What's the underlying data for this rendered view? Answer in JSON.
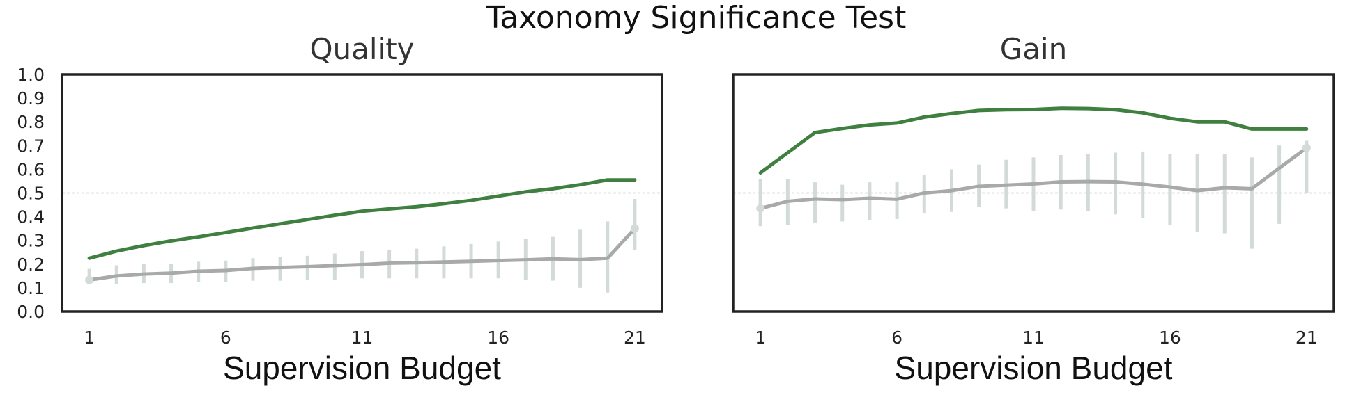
{
  "figure_title": "Taxonomy Significance Test",
  "colors": {
    "treatment": "#3f8040",
    "baseline": "#a8aaa9",
    "errorbar": "#d3dbd8",
    "reference": "#8a8a8a",
    "frame": "#222222"
  },
  "chart_data": [
    {
      "type": "line",
      "title": "Quality",
      "xlabel": "Supervision Budget",
      "ylabel": "",
      "xlim": [
        0,
        22
      ],
      "ylim": [
        0,
        1.0
      ],
      "x_ticks": [
        1,
        6,
        11,
        16,
        21
      ],
      "y_ticks": [
        0.0,
        0.1,
        0.2,
        0.3,
        0.4,
        0.5,
        0.6,
        0.7,
        0.8,
        0.9,
        1.0
      ],
      "y_tick_labels": [
        "0.0",
        "0.1",
        "0.2",
        "0.3",
        "0.4",
        "0.5",
        "0.6",
        "0.7",
        "0.8",
        "0.9",
        "1.0"
      ],
      "grid": false,
      "reference_line": 0.5,
      "x": [
        1,
        2,
        3,
        4,
        5,
        6,
        7,
        8,
        9,
        10,
        11,
        12,
        13,
        14,
        15,
        16,
        17,
        18,
        19,
        20,
        21
      ],
      "series": [
        {
          "values": [
            0.225,
            0.255,
            0.278,
            0.298,
            0.315,
            0.333,
            0.352,
            0.37,
            0.388,
            0.406,
            0.423,
            0.433,
            0.442,
            0.455,
            0.469,
            0.487,
            0.505,
            0.518,
            0.535,
            0.555,
            0.555
          ]
        },
        {
          "values": [
            0.133,
            0.15,
            0.158,
            0.162,
            0.17,
            0.173,
            0.182,
            0.186,
            0.189,
            0.194,
            0.198,
            0.204,
            0.206,
            0.209,
            0.212,
            0.215,
            0.218,
            0.222,
            0.219,
            0.225,
            0.35
          ],
          "error_low": [
            0.115,
            0.115,
            0.12,
            0.12,
            0.125,
            0.125,
            0.13,
            0.13,
            0.135,
            0.135,
            0.14,
            0.14,
            0.14,
            0.14,
            0.14,
            0.14,
            0.135,
            0.13,
            0.1,
            0.08,
            0.26
          ],
          "error_high": [
            0.18,
            0.195,
            0.2,
            0.2,
            0.21,
            0.215,
            0.225,
            0.23,
            0.235,
            0.245,
            0.255,
            0.26,
            0.265,
            0.275,
            0.285,
            0.295,
            0.305,
            0.315,
            0.345,
            0.38,
            0.475
          ]
        }
      ]
    },
    {
      "type": "line",
      "title": "Gain",
      "xlabel": "Supervision Budget",
      "ylabel": "",
      "xlim": [
        0,
        22
      ],
      "ylim": [
        0,
        1.0
      ],
      "x_ticks": [
        1,
        6,
        11,
        16,
        21
      ],
      "grid": false,
      "reference_line": 0.5,
      "x": [
        1,
        2,
        3,
        4,
        5,
        6,
        7,
        8,
        9,
        10,
        11,
        12,
        13,
        14,
        15,
        16,
        17,
        18,
        19,
        20,
        21
      ],
      "series": [
        {
          "values": [
            0.585,
            0.67,
            0.755,
            0.772,
            0.787,
            0.795,
            0.82,
            0.835,
            0.848,
            0.851,
            0.852,
            0.857,
            0.856,
            0.851,
            0.838,
            0.815,
            0.8,
            0.8,
            0.77,
            0.77,
            0.77
          ]
        },
        {
          "values": [
            0.435,
            0.465,
            0.475,
            0.472,
            0.478,
            0.474,
            0.5,
            0.51,
            0.528,
            0.533,
            0.538,
            0.547,
            0.548,
            0.547,
            0.537,
            0.525,
            0.51,
            0.522,
            0.518,
            0.605,
            0.69
          ],
          "error_low": [
            0.36,
            0.365,
            0.375,
            0.38,
            0.385,
            0.39,
            0.415,
            0.42,
            0.44,
            0.435,
            0.425,
            0.43,
            0.425,
            0.41,
            0.395,
            0.365,
            0.335,
            0.33,
            0.265,
            0.37,
            0.5
          ],
          "error_high": [
            0.56,
            0.56,
            0.545,
            0.535,
            0.545,
            0.545,
            0.575,
            0.6,
            0.62,
            0.64,
            0.65,
            0.66,
            0.665,
            0.67,
            0.675,
            0.665,
            0.665,
            0.665,
            0.65,
            0.7,
            0.72
          ]
        }
      ]
    }
  ]
}
